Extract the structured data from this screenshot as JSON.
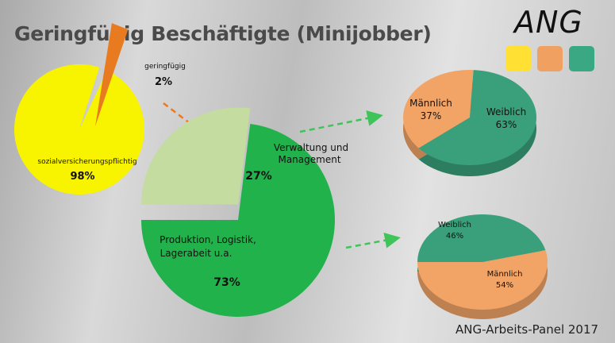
{
  "title": "Geringfügig Beschäftigte (Minijobber)",
  "logo": {
    "text": "ANG",
    "colors": [
      "#ffe033",
      "#f0a060",
      "#3aa882"
    ]
  },
  "footer": "ANG-Arbeits-Panel 2017",
  "colors": {
    "yellow": "#f8f400",
    "orange": "#e87b20",
    "green_dark": "#22b24c",
    "green_light": "#c5dca0",
    "male": "#f2a466",
    "female": "#3aa07c",
    "arrow_orange": "#e87b20",
    "arrow_green": "#3ec459"
  },
  "chart_data": [
    {
      "type": "pie",
      "title": "",
      "slices": [
        {
          "label": "sozialversicherungspflichtig",
          "value": 98,
          "value_label": "98%"
        },
        {
          "label": "geringfügig",
          "value": 2,
          "value_label": "2%"
        }
      ]
    },
    {
      "type": "pie",
      "title": "",
      "slices": [
        {
          "label": "Produktion, Logistik, Lagerabeit u.a.",
          "value": 73,
          "value_label": "73%"
        },
        {
          "label": "Verwaltung und Management",
          "value": 27,
          "value_label": "27%"
        }
      ]
    },
    {
      "type": "pie",
      "title": "",
      "slices": [
        {
          "label": "Männlich",
          "value": 37,
          "value_label": "37%"
        },
        {
          "label": "Weiblich",
          "value": 63,
          "value_label": "63%"
        }
      ]
    },
    {
      "type": "pie",
      "title": "",
      "slices": [
        {
          "label": "Weiblich",
          "value": 46,
          "value_label": "46%"
        },
        {
          "label": "Männlich",
          "value": 54,
          "value_label": "54%"
        }
      ]
    }
  ]
}
